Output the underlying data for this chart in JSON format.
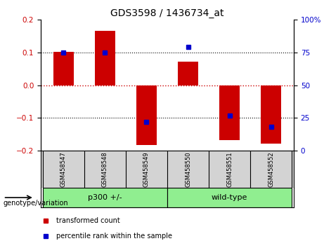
{
  "title": "GDS3598 / 1436734_at",
  "samples": [
    "GSM458547",
    "GSM458548",
    "GSM458549",
    "GSM458550",
    "GSM458551",
    "GSM458552"
  ],
  "red_bars": [
    0.102,
    0.165,
    -0.183,
    0.072,
    -0.168,
    -0.178
  ],
  "blue_percentiles": [
    75,
    75,
    22,
    79,
    27,
    18
  ],
  "ylim": [
    -0.2,
    0.2
  ],
  "yticks_left": [
    -0.2,
    -0.1,
    0,
    0.1,
    0.2
  ],
  "yticks_right": [
    0,
    25,
    50,
    75,
    100
  ],
  "group1_label": "p300 +/-",
  "group2_label": "wild-type",
  "group_color": "#90EE90",
  "group_label_text": "genotype/variation",
  "legend_red": "transformed count",
  "legend_blue": "percentile rank within the sample",
  "bar_color": "#cc0000",
  "dot_color": "#0000cc",
  "label_bg": "#d3d3d3",
  "bar_width": 0.5
}
